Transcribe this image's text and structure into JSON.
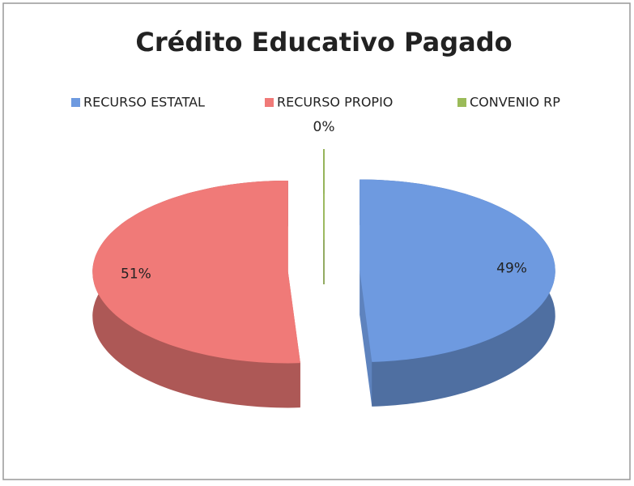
{
  "chart_data": {
    "type": "pie3d",
    "title": "Crédito Educativo Pagado",
    "categories": [
      "RECURSO ESTATAL",
      "RECURSO PROPIO",
      "CONVENIO RP"
    ],
    "values": [
      49,
      51,
      0
    ],
    "value_labels": [
      "49%",
      "51%",
      "0%"
    ],
    "colors": [
      "#6e9ae0",
      "#f07a78",
      "#9bbb59"
    ],
    "legend": "top"
  }
}
